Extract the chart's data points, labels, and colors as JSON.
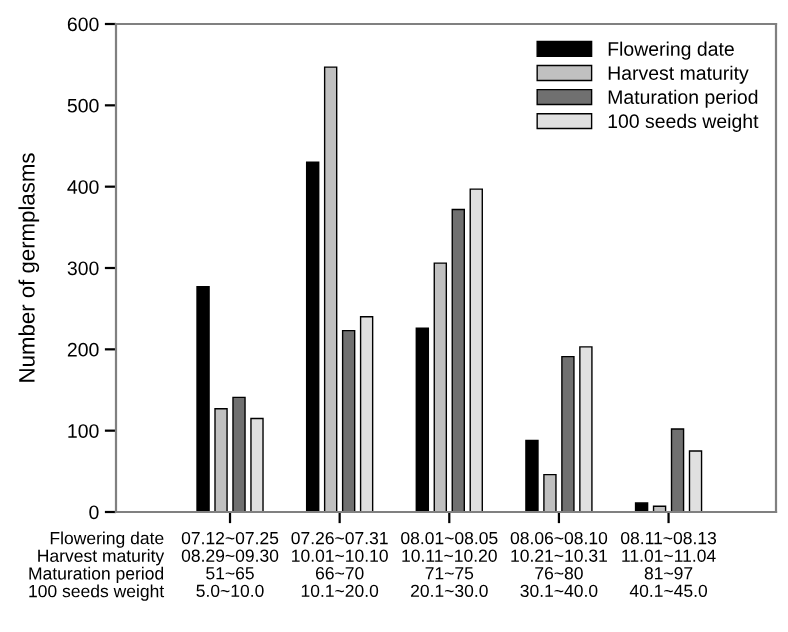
{
  "chart_data": {
    "type": "bar",
    "ylabel": "Number of germplasms",
    "categories": [
      "07.12~07.25\n08.29~09.30\n51~65\n5.0~10.0",
      "07.26~07.31\n10.01~10.10\n66~70\n10.1~20.0",
      "08.01~08.05\n10.11~10.20\n71~75\n20.1~30.0",
      "08.06~08.10\n10.21~10.31\n76~80\n30.1~40.0",
      "08.11~08.13\n11.01~11.04\n81~97\n40.1~45.0"
    ],
    "series": [
      {
        "name": "Flowering date",
        "color": "#000000",
        "values": [
          277,
          430,
          226,
          88,
          11
        ]
      },
      {
        "name": "Harvest maturity",
        "color": "#c0c0c0",
        "values": [
          127,
          547,
          306,
          46,
          7
        ]
      },
      {
        "name": "Maturation period",
        "color": "#707070",
        "values": [
          141,
          223,
          372,
          191,
          102
        ]
      },
      {
        "name": "100 seeds weight",
        "color": "#e0e0e0",
        "values": [
          115,
          240,
          397,
          203,
          75
        ]
      }
    ],
    "annotations": [
      "Flowering date",
      "Harvest maturity",
      "Maturation period",
      "100 seeds weight"
    ],
    "ylim": [
      0,
      600
    ],
    "yticks": [
      0,
      100,
      200,
      300,
      400,
      500,
      600
    ],
    "grid": false,
    "legend": "top right"
  }
}
